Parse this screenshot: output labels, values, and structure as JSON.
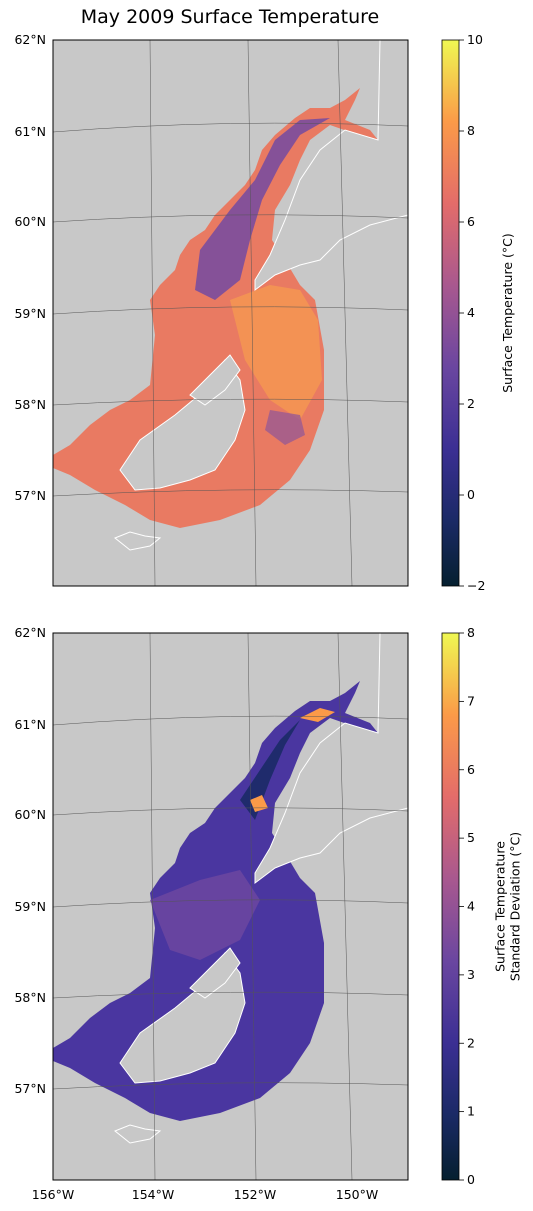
{
  "title": "May 2009 Surface Temperature",
  "colors": {
    "land": "#c8c8c8",
    "frame": "#000000",
    "grid": "#555555"
  },
  "maps": [
    {
      "name": "temperature",
      "lat_labels": [
        "62°N",
        "61°N",
        "60°N",
        "59°N",
        "58°N",
        "57°N"
      ],
      "lon_labels": [],
      "colorbar": {
        "label_lines": [
          "Surface Temperature (°C)"
        ],
        "min": -2,
        "max": 10,
        "ticks": [
          "10",
          "8",
          "6",
          "4",
          "2",
          "0",
          "−2"
        ],
        "tick_values": [
          10,
          8,
          6,
          4,
          2,
          0,
          -2
        ]
      }
    },
    {
      "name": "stddev",
      "lat_labels": [
        "62°N",
        "61°N",
        "60°N",
        "59°N",
        "58°N",
        "57°N"
      ],
      "lon_labels": [
        "156°W",
        "154°W",
        "152°W",
        "150°W"
      ],
      "colorbar": {
        "label_lines": [
          "Surface Temperature",
          "Standard Deviation (°C)"
        ],
        "min": 0,
        "max": 8,
        "ticks": [
          "8",
          "7",
          "6",
          "5",
          "4",
          "3",
          "2",
          "1",
          "0"
        ],
        "tick_values": [
          8,
          7,
          6,
          5,
          4,
          3,
          2,
          1,
          0
        ]
      }
    }
  ]
}
